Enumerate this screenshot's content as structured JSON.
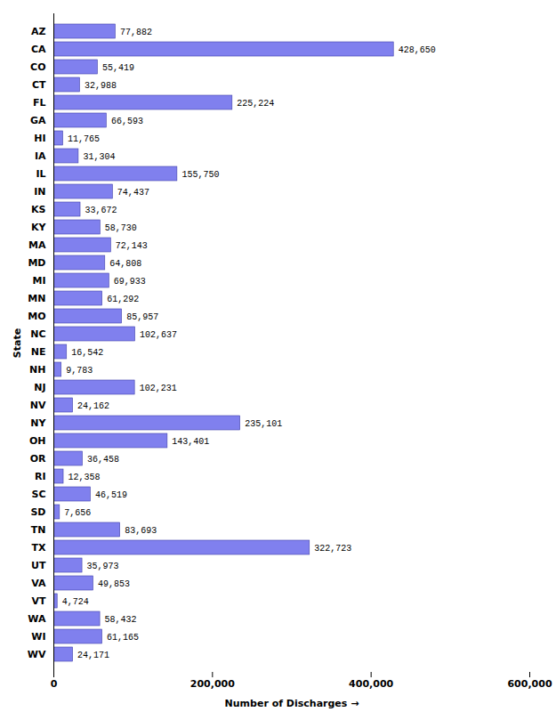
{
  "chart_data": {
    "type": "bar",
    "orientation": "horizontal",
    "categories": [
      "AZ",
      "CA",
      "CO",
      "CT",
      "FL",
      "GA",
      "HI",
      "IA",
      "IL",
      "IN",
      "KS",
      "KY",
      "MA",
      "MD",
      "MI",
      "MN",
      "MO",
      "NC",
      "NE",
      "NH",
      "NJ",
      "NV",
      "NY",
      "OH",
      "OR",
      "RI",
      "SC",
      "SD",
      "TN",
      "TX",
      "UT",
      "VA",
      "VT",
      "WA",
      "WI",
      "WV"
    ],
    "values": [
      77882,
      428650,
      55419,
      32988,
      225224,
      66593,
      11765,
      31304,
      155750,
      74437,
      33672,
      58730,
      72143,
      64808,
      69933,
      61292,
      85957,
      102637,
      16542,
      9783,
      102231,
      24162,
      235101,
      143401,
      36458,
      12358,
      46519,
      7656,
      83693,
      322723,
      35973,
      49853,
      4724,
      58432,
      61165,
      24171
    ],
    "value_labels": [
      "77,882",
      "428,650",
      "55,419",
      "32,988",
      "225,224",
      "66,593",
      "11,765",
      "31,304",
      "155,750",
      "74,437",
      "33,672",
      "58,730",
      "72,143",
      "64,808",
      "69,933",
      "61,292",
      "85,957",
      "102,637",
      "16,542",
      "9,783",
      "102,231",
      "24,162",
      "235,101",
      "143,401",
      "36,458",
      "12,358",
      "46,519",
      "7,656",
      "83,693",
      "322,723",
      "35,973",
      "49,853",
      "4,724",
      "58,432",
      "61,165",
      "24,171"
    ],
    "data_labels": true,
    "color": "#8080ee",
    "xlabel": "Number of Discharges",
    "ylabel": "State",
    "xlim": [
      0,
      600000
    ],
    "xticks": [
      0,
      {
        "value": 200000,
        "label": "200,000"
      },
      {
        "value": 400000,
        "label": "400,000"
      },
      {
        "value": 600000,
        "label": "600,000"
      }
    ],
    "grid": false
  }
}
